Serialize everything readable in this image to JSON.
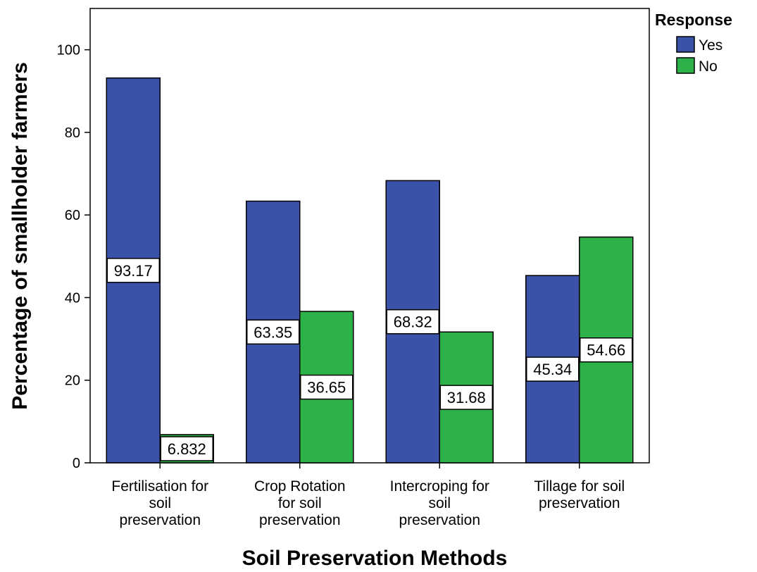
{
  "chart_data": {
    "type": "bar",
    "title": "",
    "xlabel": "Soil Preservation Methods",
    "ylabel": "Percentage of smallholder farmers",
    "ylim": [
      0,
      110
    ],
    "yticks": [
      0,
      20,
      40,
      60,
      80,
      100
    ],
    "grid": false,
    "legend_title": "Response",
    "legend_position": "top-right",
    "categories": [
      [
        "Fertilisation for",
        "soil",
        "preservation"
      ],
      [
        "Crop Rotation",
        "for soil",
        "preservation"
      ],
      [
        "Intercroping for",
        "soil",
        "preservation"
      ],
      [
        "Tillage for soil",
        "preservation"
      ]
    ],
    "series": [
      {
        "name": "Yes",
        "color": "#3a52a8",
        "values": [
          93.17,
          63.35,
          68.32,
          45.34
        ],
        "labels": [
          "93.17",
          "63.35",
          "68.32",
          "45.34"
        ]
      },
      {
        "name": "No",
        "color": "#2db24a",
        "values": [
          6.832,
          36.65,
          31.68,
          54.66
        ],
        "labels": [
          "6.832",
          "36.65",
          "31.68",
          "54.66"
        ]
      }
    ]
  }
}
